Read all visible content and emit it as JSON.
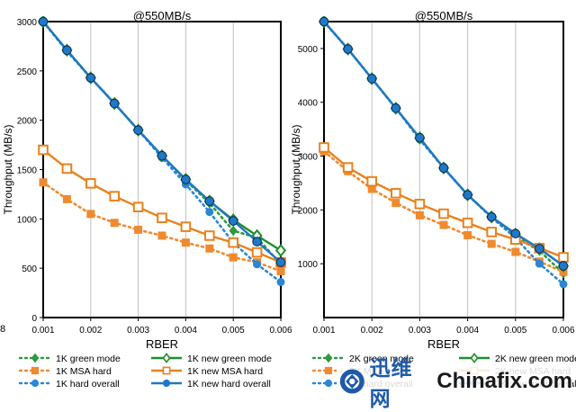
{
  "edge_digit": "8",
  "watermark": {
    "brand_cn": "迅维网",
    "brand_en": "Chinafix.com"
  },
  "chart_data": [
    {
      "type": "line",
      "title": "@550MB/s",
      "xlabel": "RBER",
      "ylabel": "Throughput (MB/s)",
      "xlim": [
        0.001,
        0.006
      ],
      "ylim": [
        0,
        3000
      ],
      "xticks": [
        0.001,
        0.002,
        0.003,
        0.004,
        0.005,
        0.006
      ],
      "xtick_labels": [
        "0.001",
        "0.002",
        "0.003",
        "0.004",
        "0.005",
        "0.006"
      ],
      "yticks": [
        0,
        500,
        1000,
        1500,
        2000,
        2500,
        3000
      ],
      "ytick_labels": [
        "0",
        "500",
        "1000",
        "1500",
        "2000",
        "2500",
        "3000"
      ],
      "series": [
        {
          "name": "1K green mode",
          "color": "#2e9a3e",
          "style": "dotted",
          "marker": "diamond",
          "x": [
            0.001,
            0.0015,
            0.002,
            0.0025,
            0.003,
            0.0035,
            0.004,
            0.0045,
            0.005,
            0.0055,
            0.006
          ],
          "y": [
            3000,
            2700,
            2430,
            2170,
            1900,
            1640,
            1390,
            1160,
            880,
            810,
            540
          ]
        },
        {
          "name": "1K MSA hard",
          "color": "#ef8a2f",
          "style": "dotted",
          "marker": "square",
          "x": [
            0.001,
            0.0015,
            0.002,
            0.0025,
            0.003,
            0.0035,
            0.004,
            0.0045,
            0.005,
            0.0055,
            0.006
          ],
          "y": [
            1370,
            1200,
            1050,
            960,
            890,
            830,
            760,
            700,
            610,
            560,
            470
          ]
        },
        {
          "name": "1K hard overall",
          "color": "#2b86d6",
          "style": "dotted",
          "marker": "circle",
          "x": [
            0.001,
            0.0015,
            0.002,
            0.0025,
            0.003,
            0.0035,
            0.004,
            0.0045,
            0.005,
            0.0055,
            0.006
          ],
          "y": [
            3000,
            2700,
            2430,
            2170,
            1900,
            1620,
            1350,
            1070,
            760,
            540,
            360
          ]
        },
        {
          "name": "1K new green mode",
          "color": "#1f8f2d",
          "style": "solid",
          "marker": "diamond",
          "x": [
            0.001,
            0.0015,
            0.002,
            0.0025,
            0.003,
            0.0035,
            0.004,
            0.0045,
            0.005,
            0.0055,
            0.006
          ],
          "y": [
            3000,
            2710,
            2430,
            2170,
            1900,
            1640,
            1400,
            1180,
            990,
            830,
            680
          ]
        },
        {
          "name": "1K new MSA hard",
          "color": "#e8821e",
          "style": "solid",
          "marker": "square",
          "x": [
            0.001,
            0.0015,
            0.002,
            0.0025,
            0.003,
            0.0035,
            0.004,
            0.0045,
            0.005,
            0.0055,
            0.006
          ],
          "y": [
            1700,
            1510,
            1360,
            1230,
            1120,
            1010,
            920,
            830,
            760,
            660,
            560
          ]
        },
        {
          "name": "1K new hard overall",
          "color": "#1f78c8",
          "style": "solid",
          "marker": "circle",
          "x": [
            0.001,
            0.0015,
            0.002,
            0.0025,
            0.003,
            0.0035,
            0.004,
            0.0045,
            0.005,
            0.0055,
            0.006
          ],
          "y": [
            3000,
            2710,
            2430,
            2170,
            1900,
            1640,
            1400,
            1180,
            980,
            770,
            560
          ]
        }
      ]
    },
    {
      "type": "line",
      "title": "@550MB/s",
      "xlabel": "RBER",
      "ylabel": "Throughput (MB/s)",
      "xlim": [
        0.001,
        0.006
      ],
      "ylim": [
        0,
        5500
      ],
      "xticks": [
        0.001,
        0.002,
        0.003,
        0.004,
        0.005,
        0.006
      ],
      "xtick_labels": [
        "0.001",
        "0.002",
        "0.003",
        "0.004",
        "0.005",
        "0.006"
      ],
      "yticks": [
        1000,
        2000,
        3000,
        4000,
        5000
      ],
      "ytick_labels": [
        "1000",
        "2000",
        "3000",
        "4000",
        "5000"
      ],
      "series": [
        {
          "name": "2K green mode",
          "color": "#2e9a3e",
          "style": "dotted",
          "marker": "diamond",
          "x": [
            0.001,
            0.0015,
            0.002,
            0.0025,
            0.003,
            0.0035,
            0.004,
            0.0045,
            0.005,
            0.0055,
            0.006
          ],
          "y": [
            5500,
            4990,
            4440,
            3890,
            3310,
            2780,
            2280,
            1860,
            1500,
            1240,
            820
          ]
        },
        {
          "name": "2K MSA hard",
          "color": "#ef8a2f",
          "style": "dotted",
          "marker": "square",
          "x": [
            0.001,
            0.0015,
            0.002,
            0.0025,
            0.003,
            0.0035,
            0.004,
            0.0045,
            0.005,
            0.0055,
            0.006
          ],
          "y": [
            3090,
            2720,
            2390,
            2130,
            1900,
            1720,
            1530,
            1370,
            1220,
            1040,
            850
          ]
        },
        {
          "name": "2K hard overall",
          "color": "#2b86d6",
          "style": "dotted",
          "marker": "circle",
          "x": [
            0.001,
            0.0015,
            0.002,
            0.0025,
            0.003,
            0.0035,
            0.004,
            0.0045,
            0.005,
            0.0055,
            0.006
          ],
          "y": [
            5500,
            4990,
            4440,
            3890,
            3310,
            2780,
            2280,
            1860,
            1480,
            1000,
            620
          ]
        },
        {
          "name": "2K new green mode",
          "color": "#1f8f2d",
          "style": "solid",
          "marker": "diamond",
          "x": [
            0.001,
            0.0015,
            0.002,
            0.0025,
            0.003,
            0.0035,
            0.004,
            0.0045,
            0.005,
            0.0055,
            0.006
          ],
          "y": [
            5500,
            4990,
            4440,
            3890,
            3340,
            2780,
            2280,
            1870,
            1550,
            1280,
            960
          ]
        },
        {
          "name": "2K new MSA hard",
          "color": "#e8821e",
          "style": "solid",
          "marker": "square",
          "x": [
            0.001,
            0.0015,
            0.002,
            0.0025,
            0.003,
            0.0035,
            0.004,
            0.0045,
            0.005,
            0.0055,
            0.006
          ],
          "y": [
            3160,
            2790,
            2530,
            2310,
            2110,
            1930,
            1760,
            1590,
            1450,
            1290,
            1120
          ]
        },
        {
          "name": "2K new hard overall",
          "color": "#1f78c8",
          "style": "solid",
          "marker": "circle",
          "x": [
            0.001,
            0.0015,
            0.002,
            0.0025,
            0.003,
            0.0035,
            0.004,
            0.0045,
            0.005,
            0.0055,
            0.006
          ],
          "y": [
            5500,
            4990,
            4440,
            3890,
            3340,
            2780,
            2280,
            1870,
            1560,
            1280,
            960
          ]
        }
      ]
    }
  ]
}
